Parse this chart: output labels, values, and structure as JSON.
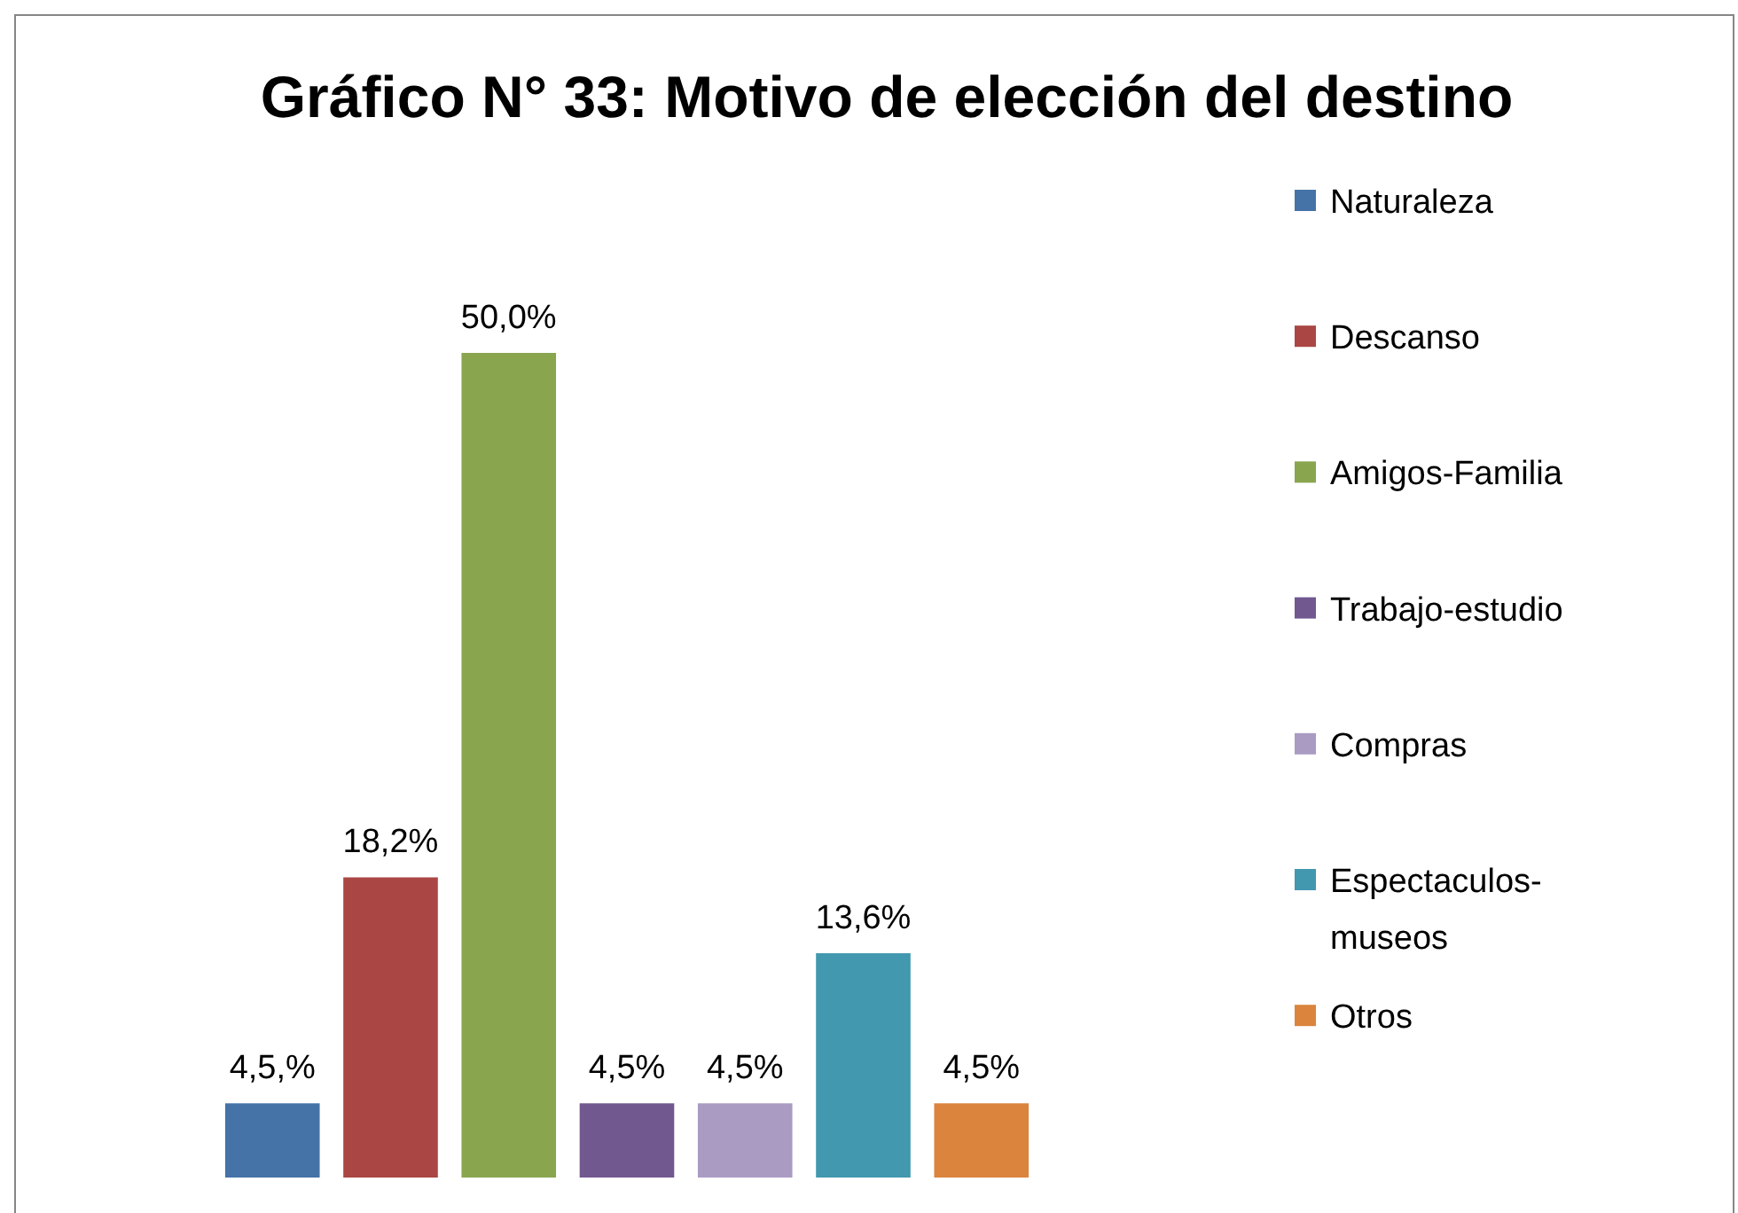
{
  "chart_data": {
    "type": "bar",
    "title": "Gráfico N° 33: Motivo de elección del destino",
    "categories": [
      null
    ],
    "legend": "right",
    "series": [
      {
        "name": "Naturaleza",
        "color": "#4572a7",
        "values": [
          4.5
        ],
        "value_labels": [
          "4,5,%"
        ]
      },
      {
        "name": "Descanso",
        "color": "#aa4643",
        "values": [
          18.2
        ],
        "value_labels": [
          "18,2%"
        ]
      },
      {
        "name": "Amigos-Familia",
        "color": "#89a54e",
        "values": [
          50.0
        ],
        "value_labels": [
          "50,0%"
        ]
      },
      {
        "name": "Trabajo-estudio",
        "color": "#71588f",
        "values": [
          4.5
        ],
        "value_labels": [
          "4,5%"
        ]
      },
      {
        "name": "Compras",
        "color": "#aa9bc3",
        "values": [
          4.5
        ],
        "value_labels": [
          "4,5%"
        ]
      },
      {
        "name": "Espectaculos-museos",
        "color": "#4198af",
        "values": [
          13.6
        ],
        "value_labels": [
          "13,6%"
        ]
      },
      {
        "name": "Otros",
        "color": "#db843d",
        "values": [
          4.5
        ],
        "value_labels": [
          "4,5%"
        ]
      }
    ]
  }
}
